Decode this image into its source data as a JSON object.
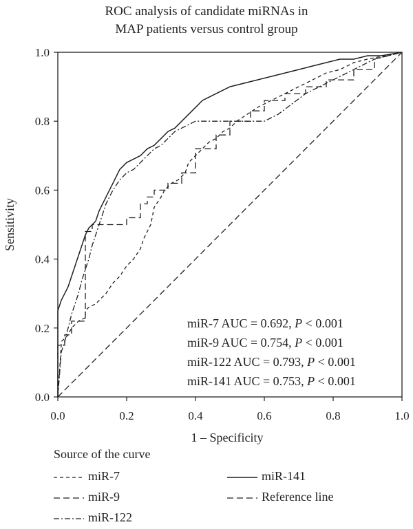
{
  "title_lines": [
    "ROC analysis of candidate miRNAs in",
    "MAP patients versus control group"
  ],
  "legend": {
    "title": "Source of the curve",
    "items": [
      {
        "label": "miR-7",
        "style": "dash-short"
      },
      {
        "label": "miR-141",
        "style": "solid"
      },
      {
        "label": "miR-9",
        "style": "dash-long"
      },
      {
        "label": "Reference line",
        "style": "dash-long"
      },
      {
        "label": "miR-122",
        "style": "dash-dot"
      }
    ]
  },
  "chart_data": {
    "type": "line",
    "title": "ROC analysis of candidate miRNAs in MAP patients versus control group",
    "xlabel": "1 – Specificity",
    "ylabel": "Sensitivity",
    "xlim": [
      0,
      1
    ],
    "ylim": [
      0,
      1
    ],
    "x_ticks": [
      "0.0",
      "0.2",
      "0.4",
      "0.6",
      "0.8",
      "1.0"
    ],
    "y_ticks": [
      "0.0",
      "0.2",
      "0.4",
      "0.6",
      "0.8",
      "1.0"
    ],
    "annotations": [
      {
        "name": "miR-7 AUC = 0.692, ",
        "p": "P",
        "rest": " < 0.001"
      },
      {
        "name": "miR-9 AUC = 0.754, ",
        "p": "P",
        "rest": " < 0.001"
      },
      {
        "name": "miR-122 AUC = 0.793, ",
        "p": "P",
        "rest": " < 0.001"
      },
      {
        "name": "miR-141 AUC = 0.753, ",
        "p": "P",
        "rest": " < 0.001"
      }
    ],
    "series": [
      {
        "name": "miR-7",
        "style": "dash-short",
        "x": [
          0,
          0.01,
          0.01,
          0.03,
          0.04,
          0.06,
          0.08,
          0.08,
          0.09,
          0.11,
          0.12,
          0.14,
          0.16,
          0.18,
          0.2,
          0.22,
          0.24,
          0.25,
          0.27,
          0.28,
          0.3,
          0.31,
          0.33,
          0.35,
          0.37,
          0.38,
          0.4,
          0.42,
          0.44,
          0.46,
          0.48,
          0.5,
          0.52,
          0.55,
          0.58,
          0.62,
          0.66,
          0.7,
          0.74,
          0.78,
          0.82,
          0.86,
          0.9,
          1.0
        ],
        "y": [
          0,
          0.15,
          0.16,
          0.18,
          0.2,
          0.22,
          0.23,
          0.25,
          0.26,
          0.27,
          0.28,
          0.3,
          0.33,
          0.35,
          0.38,
          0.4,
          0.43,
          0.46,
          0.5,
          0.55,
          0.58,
          0.6,
          0.62,
          0.63,
          0.65,
          0.68,
          0.7,
          0.72,
          0.74,
          0.75,
          0.77,
          0.78,
          0.8,
          0.82,
          0.84,
          0.86,
          0.88,
          0.9,
          0.92,
          0.94,
          0.95,
          0.97,
          0.98,
          1.0
        ]
      },
      {
        "name": "miR-9",
        "style": "dash-long",
        "x": [
          0,
          0.0,
          0.02,
          0.02,
          0.04,
          0.04,
          0.08,
          0.08,
          0.1,
          0.1,
          0.12,
          0.12,
          0.2,
          0.2,
          0.24,
          0.24,
          0.26,
          0.26,
          0.28,
          0.28,
          0.32,
          0.32,
          0.36,
          0.36,
          0.4,
          0.4,
          0.46,
          0.46,
          0.5,
          0.5,
          0.56,
          0.56,
          0.6,
          0.6,
          0.66,
          0.66,
          0.72,
          0.72,
          0.78,
          0.78,
          0.86,
          0.86,
          0.92,
          0.92,
          1.0
        ],
        "y": [
          0,
          0.15,
          0.15,
          0.18,
          0.18,
          0.22,
          0.22,
          0.48,
          0.48,
          0.5,
          0.5,
          0.5,
          0.5,
          0.52,
          0.52,
          0.56,
          0.56,
          0.58,
          0.58,
          0.6,
          0.6,
          0.62,
          0.62,
          0.65,
          0.65,
          0.72,
          0.72,
          0.76,
          0.76,
          0.8,
          0.8,
          0.83,
          0.83,
          0.86,
          0.86,
          0.88,
          0.88,
          0.9,
          0.9,
          0.92,
          0.92,
          0.95,
          0.95,
          0.98,
          1.0
        ]
      },
      {
        "name": "miR-122",
        "style": "dash-dot",
        "x": [
          0,
          0.01,
          0.02,
          0.03,
          0.04,
          0.05,
          0.06,
          0.07,
          0.08,
          0.09,
          0.1,
          0.11,
          0.12,
          0.13,
          0.14,
          0.16,
          0.18,
          0.2,
          0.22,
          0.24,
          0.26,
          0.28,
          0.3,
          0.32,
          0.34,
          0.36,
          0.38,
          0.4,
          0.44,
          0.48,
          0.52,
          0.56,
          0.6,
          0.64,
          0.68,
          0.72,
          0.76,
          0.8,
          0.84,
          0.88,
          0.92,
          1.0
        ],
        "y": [
          0,
          0.13,
          0.16,
          0.2,
          0.24,
          0.27,
          0.3,
          0.34,
          0.37,
          0.4,
          0.44,
          0.47,
          0.5,
          0.53,
          0.56,
          0.6,
          0.63,
          0.65,
          0.66,
          0.68,
          0.7,
          0.72,
          0.73,
          0.75,
          0.77,
          0.78,
          0.79,
          0.8,
          0.8,
          0.8,
          0.8,
          0.8,
          0.8,
          0.82,
          0.85,
          0.88,
          0.9,
          0.92,
          0.94,
          0.96,
          0.98,
          1.0
        ]
      },
      {
        "name": "miR-141",
        "style": "solid",
        "x": [
          0,
          0.0,
          0.01,
          0.02,
          0.03,
          0.04,
          0.05,
          0.06,
          0.07,
          0.08,
          0.09,
          0.1,
          0.11,
          0.12,
          0.14,
          0.16,
          0.18,
          0.2,
          0.22,
          0.24,
          0.26,
          0.28,
          0.3,
          0.32,
          0.34,
          0.36,
          0.38,
          0.4,
          0.42,
          0.44,
          0.46,
          0.48,
          0.5,
          0.54,
          0.58,
          0.62,
          0.66,
          0.7,
          0.74,
          0.78,
          0.82,
          0.86,
          0.9,
          0.94,
          1.0
        ],
        "y": [
          0,
          0.25,
          0.28,
          0.3,
          0.32,
          0.35,
          0.38,
          0.41,
          0.44,
          0.47,
          0.49,
          0.5,
          0.51,
          0.54,
          0.58,
          0.62,
          0.66,
          0.68,
          0.69,
          0.7,
          0.72,
          0.73,
          0.75,
          0.77,
          0.78,
          0.8,
          0.82,
          0.84,
          0.86,
          0.87,
          0.88,
          0.89,
          0.9,
          0.91,
          0.92,
          0.93,
          0.94,
          0.95,
          0.96,
          0.97,
          0.98,
          0.98,
          0.99,
          0.99,
          1.0
        ]
      },
      {
        "name": "Reference line",
        "style": "dash-long",
        "x": [
          0,
          1
        ],
        "y": [
          0,
          1
        ]
      }
    ]
  }
}
